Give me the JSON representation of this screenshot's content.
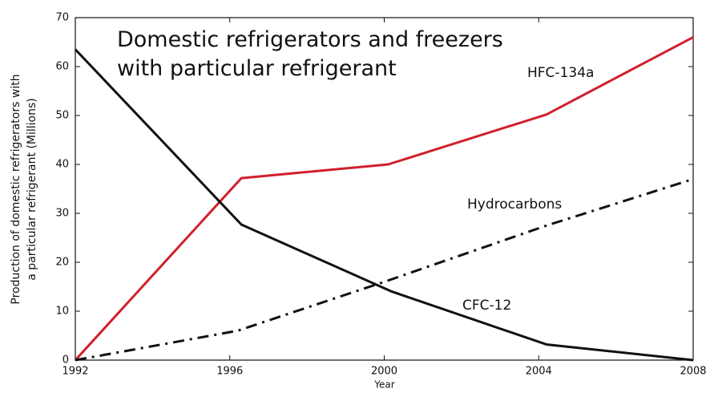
{
  "chart_data": {
    "type": "line",
    "title": [
      "Domestic refrigerators and freezers",
      "with particular refrigerant"
    ],
    "x_label": "Year",
    "y_label": [
      "Production of domestic refrigerators with",
      "a particular refrigerant (Millions)"
    ],
    "xlim": [
      1992,
      2008
    ],
    "xticks": [
      1992,
      1996,
      2000,
      2004,
      2008
    ],
    "ylim": [
      0,
      70
    ],
    "yticks": [
      0,
      10,
      20,
      30,
      40,
      50,
      60,
      70
    ],
    "series": [
      {
        "name": "HFC-134a",
        "color": "#d0202a",
        "style": "solid",
        "x": [
          1992,
          1996.3,
          2000.1,
          2004.2,
          2008
        ],
        "values": [
          0,
          37.2,
          40,
          50.2,
          66
        ]
      },
      {
        "name": "Hydrocarbons",
        "color": "#111111",
        "style": "dashdot",
        "x": [
          1992,
          1996.2,
          2000,
          2004.2,
          2008
        ],
        "values": [
          0,
          6,
          16,
          27.5,
          37
        ]
      },
      {
        "name": "CFC-12",
        "color": "#111111",
        "style": "solid",
        "x": [
          1992,
          1996.3,
          2000.2,
          2004.2,
          2008
        ],
        "values": [
          63.5,
          27.7,
          14,
          3.2,
          0
        ]
      }
    ]
  }
}
